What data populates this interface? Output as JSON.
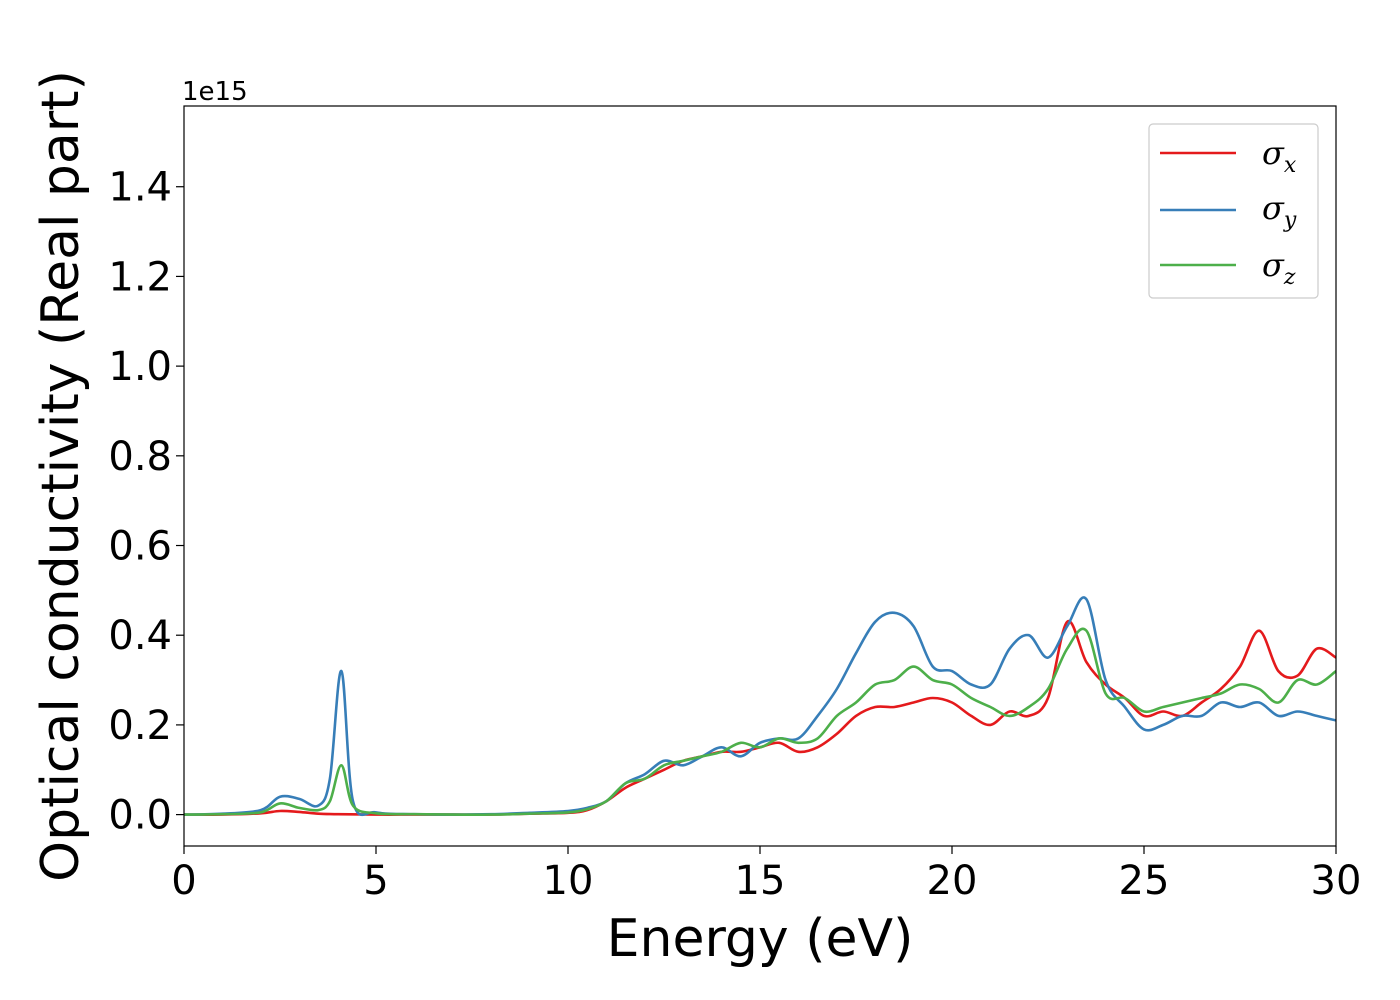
{
  "chart_data": {
    "type": "line",
    "title": "",
    "xlabel": "Energy (eV)",
    "ylabel": "Optical conductivity (Real part)",
    "y_offset_label": "1e15",
    "xlim": [
      0,
      30
    ],
    "ylim": [
      -0.07,
      1.58
    ],
    "xticks": [
      0,
      5,
      10,
      15,
      20,
      25,
      30
    ],
    "yticks": [
      0.0,
      0.2,
      0.4,
      0.6,
      0.8,
      1.0,
      1.2,
      1.4
    ],
    "xtick_labels": [
      "0",
      "5",
      "10",
      "15",
      "20",
      "25",
      "30"
    ],
    "ytick_labels": [
      "0.0",
      "0.2",
      "0.4",
      "0.6",
      "0.8",
      "1.0",
      "1.2",
      "1.4"
    ],
    "grid": false,
    "legend_position": "top-right",
    "series": [
      {
        "name": "σ",
        "subscript": "x",
        "color": "#e41a1c",
        "x": [
          0,
          1,
          2,
          2.5,
          3,
          3.5,
          4,
          5,
          6,
          7,
          8,
          9,
          10,
          10.5,
          11,
          11.5,
          12,
          12.5,
          13,
          13.5,
          14,
          14.5,
          15,
          15.5,
          16,
          16.5,
          17,
          17.5,
          18,
          18.5,
          19,
          19.5,
          20,
          20.5,
          21,
          21.5,
          22,
          22.5,
          23,
          23.5,
          24,
          24.5,
          25,
          25.5,
          26,
          26.5,
          27,
          27.5,
          28,
          28.5,
          29,
          29.5,
          30
        ],
        "y": [
          0,
          0,
          0.003,
          0.008,
          0.006,
          0.002,
          0.001,
          0,
          0,
          0,
          0,
          0.002,
          0.004,
          0.01,
          0.03,
          0.06,
          0.08,
          0.1,
          0.12,
          0.13,
          0.14,
          0.14,
          0.15,
          0.16,
          0.14,
          0.15,
          0.18,
          0.22,
          0.24,
          0.24,
          0.25,
          0.26,
          0.25,
          0.22,
          0.2,
          0.23,
          0.22,
          0.26,
          0.43,
          0.34,
          0.29,
          0.26,
          0.22,
          0.23,
          0.22,
          0.25,
          0.28,
          0.33,
          0.41,
          0.32,
          0.31,
          0.37,
          0.35
        ]
      },
      {
        "name": "σ",
        "subscript": "y",
        "color": "#377eb8",
        "x": [
          0,
          1,
          2,
          2.5,
          3,
          3.5,
          3.8,
          4.1,
          4.4,
          5,
          6,
          7,
          8,
          9,
          10,
          10.5,
          11,
          11.5,
          12,
          12.5,
          13,
          13.5,
          14,
          14.5,
          15,
          15.5,
          16,
          16.5,
          17,
          17.5,
          18,
          18.5,
          19,
          19.5,
          20,
          20.5,
          21,
          21.5,
          22,
          22.5,
          23,
          23.5,
          24,
          24.5,
          25,
          25.5,
          26,
          26.5,
          27,
          27.5,
          28,
          28.5,
          29,
          29.5,
          30
        ],
        "y": [
          0,
          0.002,
          0.01,
          0.04,
          0.035,
          0.02,
          0.08,
          0.32,
          0.03,
          0.005,
          0.001,
          0,
          0.001,
          0.004,
          0.008,
          0.015,
          0.03,
          0.07,
          0.09,
          0.12,
          0.11,
          0.13,
          0.15,
          0.13,
          0.16,
          0.17,
          0.17,
          0.22,
          0.28,
          0.36,
          0.43,
          0.45,
          0.42,
          0.33,
          0.32,
          0.29,
          0.29,
          0.37,
          0.4,
          0.35,
          0.42,
          0.48,
          0.3,
          0.24,
          0.19,
          0.2,
          0.22,
          0.22,
          0.25,
          0.24,
          0.25,
          0.22,
          0.23,
          0.22,
          0.21
        ]
      },
      {
        "name": "σ",
        "subscript": "z",
        "color": "#4daf4a",
        "x": [
          0,
          1,
          2,
          2.5,
          3,
          3.5,
          3.8,
          4.1,
          4.4,
          5,
          6,
          7,
          8,
          9,
          10,
          10.5,
          11,
          11.5,
          12,
          12.5,
          13,
          13.5,
          14,
          14.5,
          15,
          15.5,
          16,
          16.5,
          17,
          17.5,
          18,
          18.5,
          19,
          19.5,
          20,
          20.5,
          21,
          21.5,
          22,
          22.5,
          23,
          23.5,
          24,
          24.5,
          25,
          25.5,
          26,
          26.5,
          27,
          27.5,
          28,
          28.5,
          29,
          29.5,
          30
        ],
        "y": [
          0,
          0.001,
          0.005,
          0.025,
          0.015,
          0.01,
          0.03,
          0.11,
          0.02,
          0.003,
          0.001,
          0,
          0,
          0.002,
          0.005,
          0.012,
          0.03,
          0.07,
          0.08,
          0.11,
          0.12,
          0.13,
          0.14,
          0.16,
          0.15,
          0.17,
          0.16,
          0.17,
          0.22,
          0.25,
          0.29,
          0.3,
          0.33,
          0.3,
          0.29,
          0.26,
          0.24,
          0.22,
          0.24,
          0.28,
          0.37,
          0.41,
          0.27,
          0.26,
          0.23,
          0.24,
          0.25,
          0.26,
          0.27,
          0.29,
          0.28,
          0.25,
          0.3,
          0.29,
          0.32
        ]
      }
    ]
  }
}
